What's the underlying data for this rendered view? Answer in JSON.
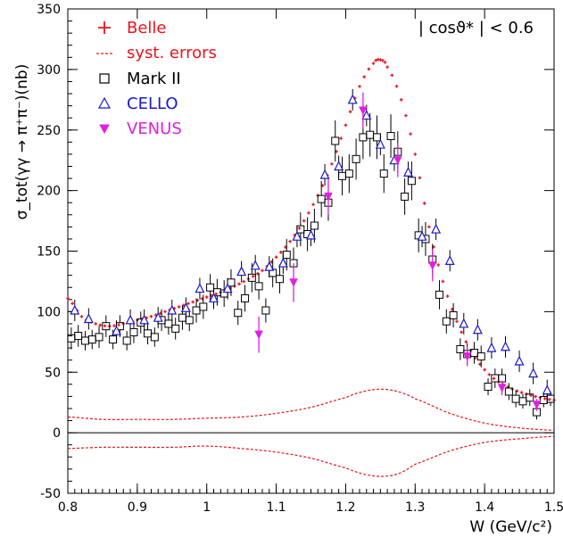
{
  "chart_data": {
    "type": "scatter",
    "xlabel": "W (GeV/c²)",
    "ylabel": "σ_tot(γγ → π⁺π⁻)(nb)",
    "annotation": "| cosϑ* | < 0.6",
    "xlim": [
      0.8,
      1.5
    ],
    "ylim": [
      -50,
      350
    ],
    "x_ticks": [
      0.8,
      0.9,
      1.0,
      1.1,
      1.2,
      1.3,
      1.4,
      1.5
    ],
    "x_tick_labels": [
      "0.8",
      "0.9",
      "1",
      "1.1",
      "1.2",
      "1.3",
      "1.4",
      "1.5"
    ],
    "y_ticks": [
      -50,
      0,
      50,
      100,
      150,
      200,
      250,
      300,
      350
    ],
    "y_tick_labels": [
      "-50",
      "0",
      "50",
      "100",
      "150",
      "200",
      "250",
      "300",
      "350"
    ],
    "legend_position": "top-left",
    "series": [
      {
        "name": "Belle",
        "marker": "cross",
        "color": "#e8141c",
        "x": [
          0.8,
          0.82,
          0.84,
          0.86,
          0.88,
          0.9,
          0.92,
          0.94,
          0.96,
          0.98,
          1.0,
          1.02,
          1.04,
          1.06,
          1.08,
          1.1,
          1.12,
          1.14,
          1.16,
          1.18,
          1.2,
          1.22,
          1.24,
          1.25,
          1.26,
          1.28,
          1.3,
          1.32,
          1.34,
          1.36,
          1.38,
          1.4,
          1.42,
          1.44,
          1.46,
          1.48,
          1.5
        ],
        "y": [
          111,
          96,
          90,
          88,
          90,
          93,
          96,
          100,
          104,
          108,
          112,
          116,
          121,
          127,
          134,
          145,
          158,
          175,
          196,
          222,
          254,
          286,
          305,
          308,
          302,
          275,
          230,
          170,
          125,
          92,
          68,
          52,
          42,
          36,
          32,
          29,
          27
        ]
      },
      {
        "name": "syst. errors",
        "marker": "dashed-line",
        "color": "#e8141c",
        "upper": {
          "x": [
            0.8,
            0.85,
            0.9,
            0.95,
            1.0,
            1.05,
            1.1,
            1.15,
            1.2,
            1.225,
            1.25,
            1.275,
            1.3,
            1.35,
            1.4,
            1.45,
            1.5
          ],
          "y": [
            13,
            11,
            11,
            11,
            12,
            13,
            16,
            21,
            29,
            34,
            36,
            34,
            28,
            16,
            8,
            4,
            2
          ]
        },
        "lower": {
          "x": [
            0.8,
            0.85,
            0.9,
            0.95,
            1.0,
            1.05,
            1.1,
            1.15,
            1.2,
            1.225,
            1.25,
            1.275,
            1.3,
            1.35,
            1.4,
            1.45,
            1.5
          ],
          "y": [
            -13,
            -12,
            -12,
            -12,
            -11,
            -13,
            -16,
            -21,
            -29,
            -34,
            -36,
            -34,
            -26,
            -15,
            -8,
            -5,
            -3
          ]
        }
      },
      {
        "name": "Mark II",
        "marker": "open-square",
        "color": "#000000",
        "x": [
          0.805,
          0.815,
          0.825,
          0.835,
          0.845,
          0.855,
          0.865,
          0.875,
          0.885,
          0.895,
          0.905,
          0.915,
          0.925,
          0.935,
          0.945,
          0.955,
          0.965,
          0.975,
          0.985,
          0.995,
          1.005,
          1.015,
          1.025,
          1.035,
          1.045,
          1.055,
          1.065,
          1.075,
          1.085,
          1.095,
          1.105,
          1.115,
          1.125,
          1.135,
          1.145,
          1.155,
          1.165,
          1.175,
          1.185,
          1.195,
          1.205,
          1.215,
          1.225,
          1.235,
          1.245,
          1.255,
          1.265,
          1.275,
          1.285,
          1.295,
          1.305,
          1.315,
          1.325,
          1.335,
          1.345,
          1.355,
          1.365,
          1.375,
          1.385,
          1.395,
          1.405,
          1.415,
          1.425,
          1.435,
          1.445,
          1.455,
          1.465,
          1.475,
          1.485,
          1.495
        ],
        "y": [
          78,
          80,
          76,
          77,
          79,
          88,
          77,
          88,
          76,
          83,
          91,
          82,
          79,
          93,
          90,
          86,
          95,
          93,
          101,
          104,
          120,
          116,
          115,
          124,
          99,
          111,
          128,
          121,
          101,
          132,
          127,
          147,
          140,
          168,
          164,
          171,
          193,
          190,
          241,
          212,
          214,
          226,
          244,
          246,
          244,
          214,
          245,
          232,
          195,
          208,
          163,
          160,
          143,
          114,
          92,
          97,
          69,
          65,
          66,
          63,
          38,
          45,
          45,
          34,
          28,
          26,
          29,
          17,
          27,
          28
        ],
        "yerr": [
          9,
          9,
          8,
          8,
          9,
          9,
          8,
          9,
          8,
          9,
          9,
          9,
          8,
          9,
          9,
          9,
          10,
          9,
          10,
          10,
          11,
          11,
          11,
          11,
          10,
          11,
          12,
          11,
          10,
          12,
          12,
          13,
          13,
          14,
          14,
          14,
          15,
          15,
          17,
          16,
          16,
          17,
          18,
          18,
          18,
          16,
          18,
          17,
          15,
          16,
          14,
          14,
          13,
          12,
          10,
          10,
          9,
          9,
          9,
          9,
          7,
          8,
          8,
          7,
          7,
          6,
          7,
          6,
          6,
          6
        ]
      },
      {
        "name": "CELLO",
        "marker": "open-triangle-up",
        "color": "#1818d0",
        "x": [
          0.81,
          0.83,
          0.87,
          0.89,
          0.91,
          0.93,
          0.95,
          0.97,
          0.99,
          1.01,
          1.03,
          1.05,
          1.07,
          1.09,
          1.11,
          1.13,
          1.15,
          1.17,
          1.19,
          1.21,
          1.23,
          1.25,
          1.27,
          1.29,
          1.31,
          1.33,
          1.35,
          1.37,
          1.39,
          1.41,
          1.43,
          1.45,
          1.47,
          1.49
        ],
        "y": [
          101,
          94,
          84,
          93,
          93,
          95,
          101,
          103,
          119,
          111,
          119,
          133,
          138,
          137,
          140,
          162,
          163,
          213,
          220,
          275,
          262,
          238,
          225,
          215,
          162,
          168,
          142,
          90,
          85,
          70,
          71,
          59,
          49,
          35
        ]
      },
      {
        "name": "VENUS",
        "marker": "filled-triangle-down",
        "color": "#e020e0",
        "x": [
          1.075,
          1.125,
          1.175,
          1.225,
          1.275,
          1.325,
          1.375,
          1.425,
          1.475
        ],
        "y": [
          81,
          124,
          195,
          266,
          225,
          138,
          63,
          37,
          23
        ],
        "yerr": [
          15,
          16,
          15,
          15,
          14,
          13,
          8,
          6,
          5
        ]
      }
    ]
  }
}
